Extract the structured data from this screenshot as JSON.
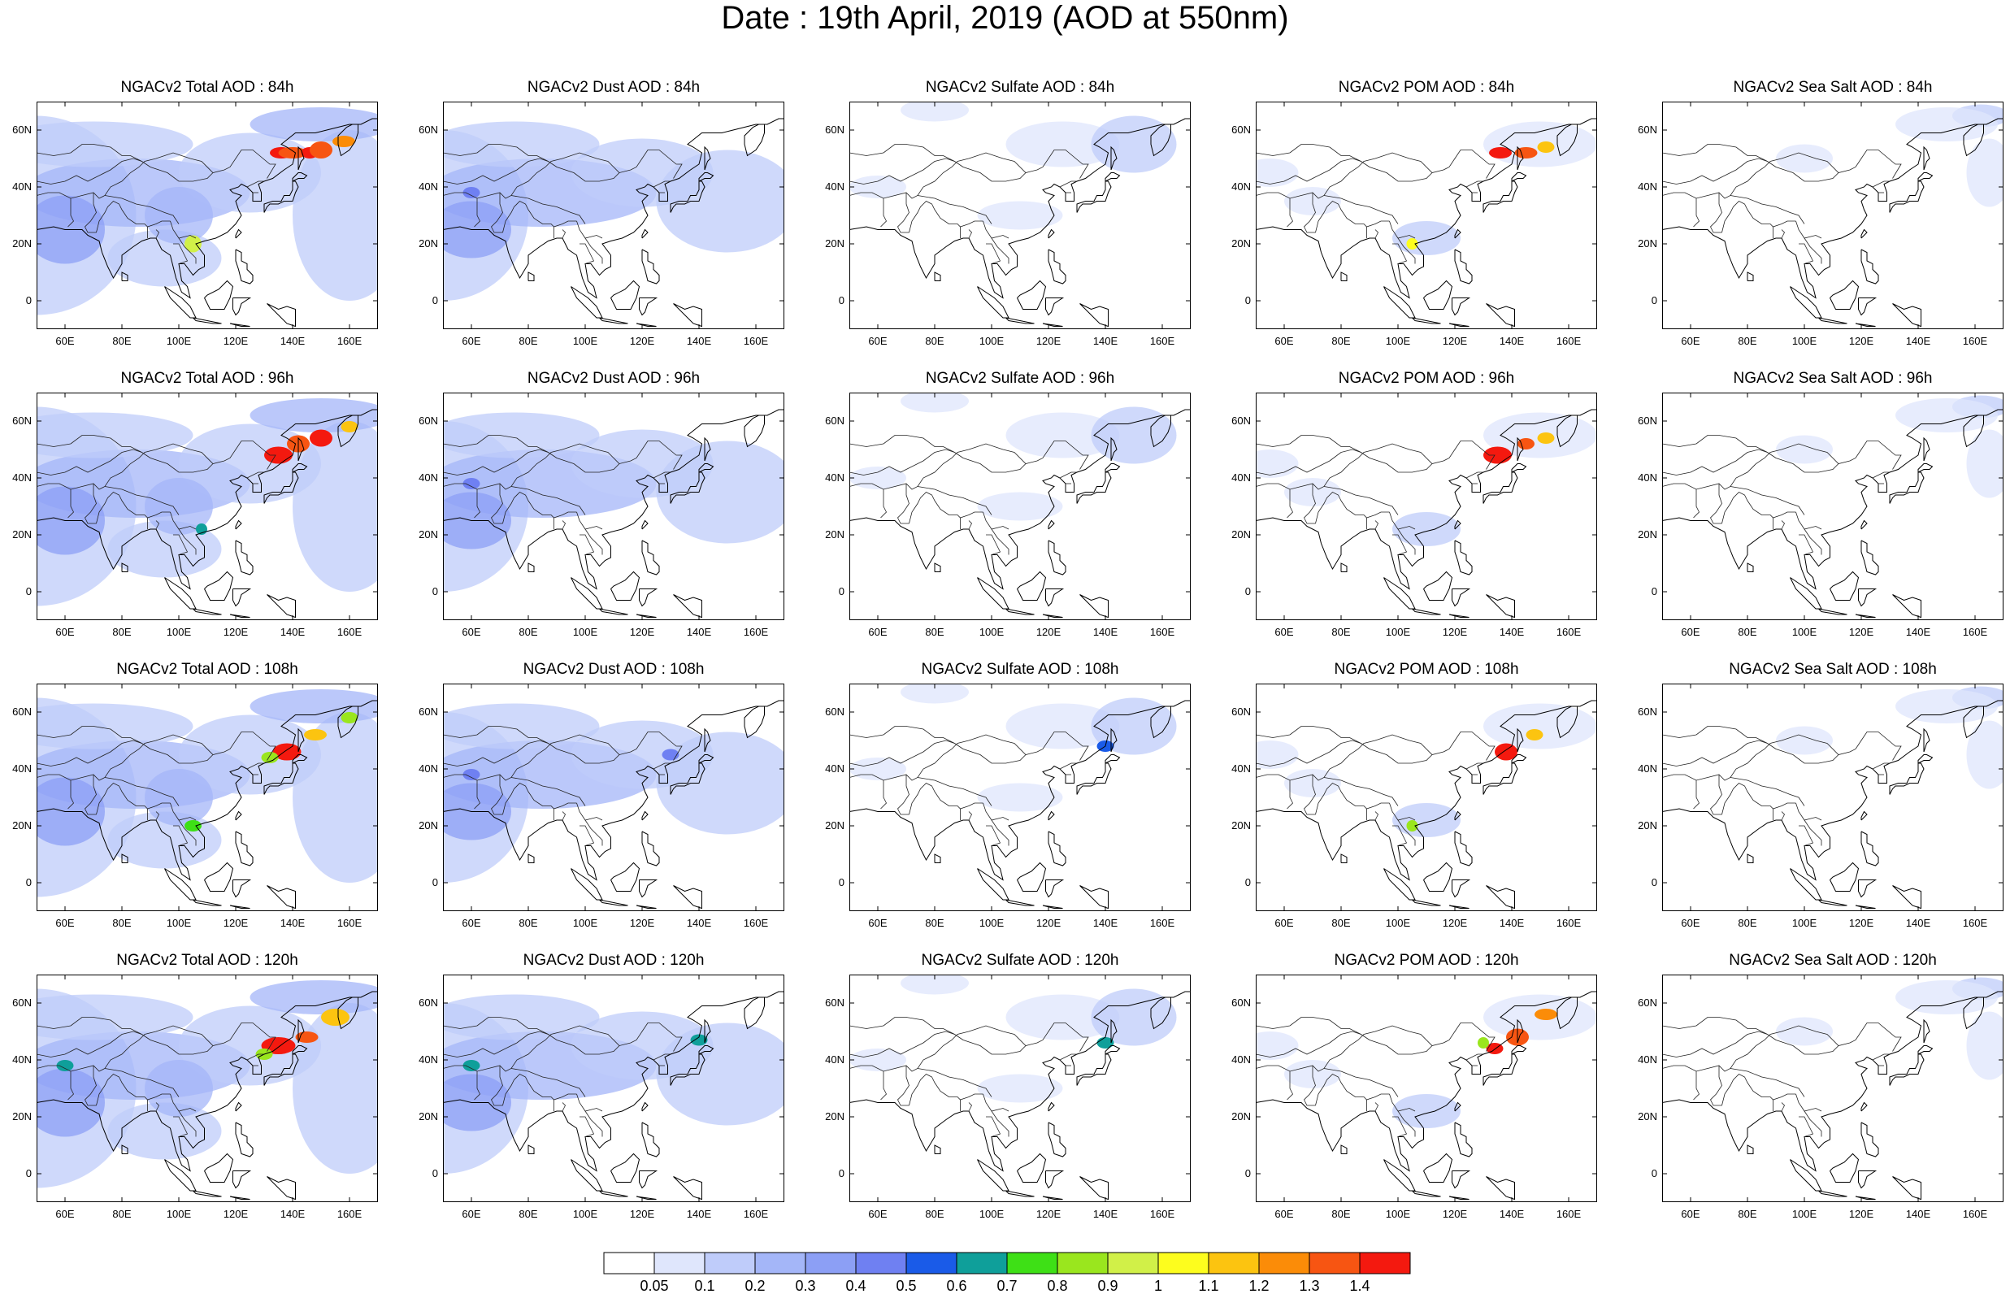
{
  "title": "Date : 19th April, 2019 (AOD at 550nm)",
  "rows": [
    [
      "NGACv2 Total AOD : 84h",
      "NGACv2 Dust AOD : 84h",
      "NGACv2 Sulfate AOD : 84h",
      "NGACv2 POM AOD : 84h",
      "NGACv2 Sea Salt AOD : 84h"
    ],
    [
      "NGACv2 Total AOD : 96h",
      "NGACv2 Dust AOD : 96h",
      "NGACv2 Sulfate AOD : 96h",
      "NGACv2 POM AOD : 96h",
      "NGACv2 Sea Salt AOD : 96h"
    ],
    [
      "NGACv2 Total AOD : 108h",
      "NGACv2 Dust AOD : 108h",
      "NGACv2 Sulfate AOD : 108h",
      "NGACv2 POM AOD : 108h",
      "NGACv2 Sea Salt AOD : 108h"
    ],
    [
      "NGACv2 Total AOD : 120h",
      "NGACv2 Dust AOD : 120h",
      "NGACv2 Sulfate AOD : 120h",
      "NGACv2 POM AOD : 120h",
      "NGACv2 Sea Salt  AOD : 120h"
    ]
  ],
  "lat_ticks": [
    "60N",
    "40N",
    "20N",
    "0"
  ],
  "lon_ticks": [
    "60E",
    "80E",
    "100E",
    "120E",
    "140E",
    "160E"
  ],
  "map_extent": {
    "lon": [
      50,
      170
    ],
    "lat": [
      -10,
      70
    ]
  },
  "colorbar": {
    "labels": [
      "0.05",
      "0.1",
      "0.2",
      "0.3",
      "0.4",
      "0.5",
      "0.6",
      "0.7",
      "0.8",
      "0.9",
      "1",
      "1.1",
      "1.2",
      "1.3",
      "1.4"
    ],
    "colors": [
      "#ffffff",
      "#dfe6fc",
      "#bfccfa",
      "#a4b6f8",
      "#8c9ff5",
      "#6f80f2",
      "#1a5be8",
      "#0f9f9a",
      "#3ee016",
      "#9ae61e",
      "#d1f048",
      "#fdfd1e",
      "#fcc410",
      "#fb8c08",
      "#f75512",
      "#f4190f"
    ]
  }
}
